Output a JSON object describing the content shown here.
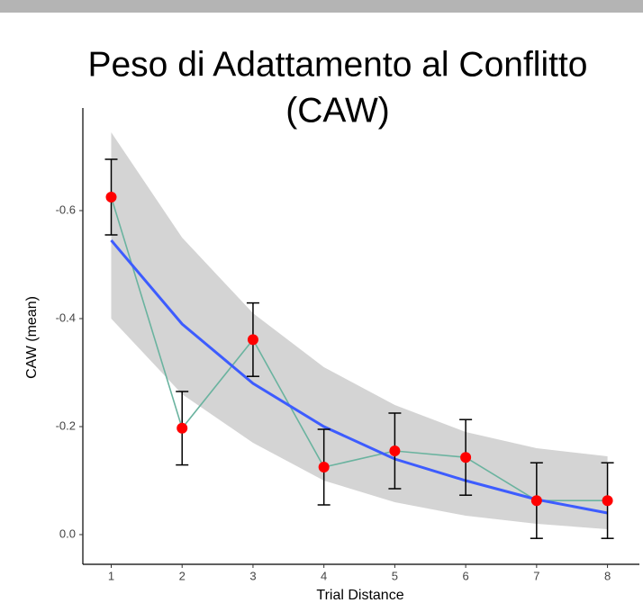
{
  "chart_data": {
    "type": "line",
    "title": [
      "Peso di Adattamento al Conflitto",
      "(CAW)"
    ],
    "x_label": "Trial Distance",
    "y_label": "CAW (mean)",
    "x": [
      1,
      2,
      3,
      4,
      5,
      6,
      7,
      8
    ],
    "series": [
      {
        "name": "mean",
        "color": "#6ab39f",
        "point_color": "#ff0000",
        "values": [
          -0.625,
          -0.197,
          -0.361,
          -0.125,
          -0.155,
          -0.143,
          -0.063,
          -0.063
        ],
        "errors": [
          0.07,
          0.068,
          0.068,
          0.07,
          0.07,
          0.07,
          0.07,
          0.07
        ]
      },
      {
        "name": "fit",
        "color": "#3d5cff",
        "values": [
          -0.545,
          -0.39,
          -0.28,
          -0.2,
          -0.14,
          -0.1,
          -0.065,
          -0.04
        ],
        "band_high": [
          -0.745,
          -0.55,
          -0.41,
          -0.31,
          -0.24,
          -0.19,
          -0.16,
          -0.145
        ],
        "band_low": [
          -0.4,
          -0.26,
          -0.17,
          -0.1,
          -0.06,
          -0.035,
          -0.02,
          -0.01
        ],
        "band_color": "#d4d4d4"
      }
    ],
    "xlim": [
      0.6,
      8.45
    ],
    "xticks": [
      1,
      2,
      3,
      4,
      5,
      6,
      7,
      8
    ],
    "ylim": [
      -0.79,
      0.055
    ],
    "y_reversed": true,
    "yticks": [
      -0.6,
      -0.4,
      -0.2,
      {
        "value": 0,
        "label": "0.0"
      }
    ]
  }
}
